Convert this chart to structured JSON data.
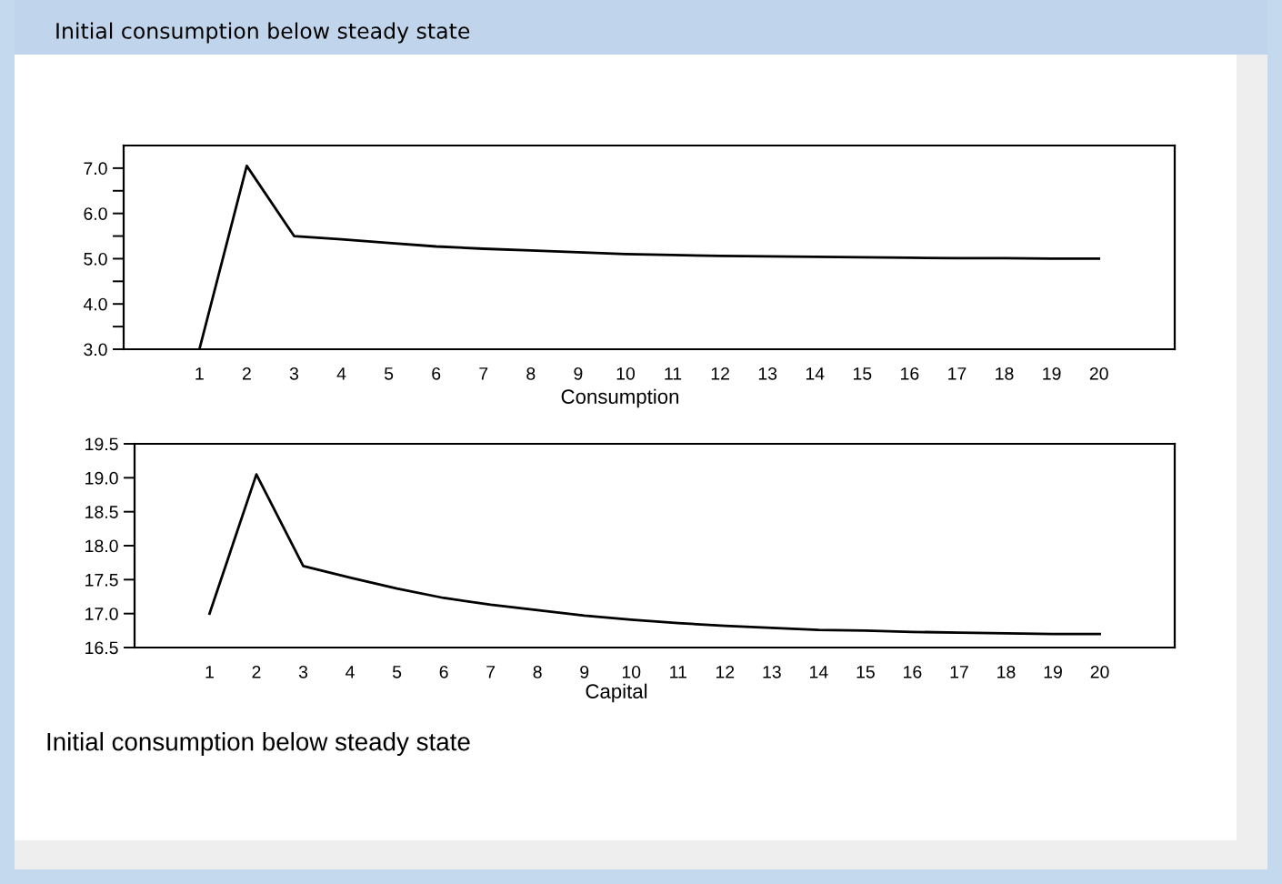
{
  "chart_data": [
    {
      "type": "line",
      "title": "Initial consumption below steady state",
      "xlabel": "Consumption",
      "x": [
        1,
        2,
        3,
        4,
        5,
        6,
        7,
        8,
        9,
        10,
        11,
        12,
        13,
        14,
        15,
        16,
        17,
        18,
        19,
        20
      ],
      "series": [
        {
          "color": "#000000",
          "values": [
            3.0,
            7.05,
            5.5,
            5.43,
            5.35,
            5.27,
            5.22,
            5.18,
            5.14,
            5.1,
            5.08,
            5.06,
            5.05,
            5.04,
            5.03,
            5.02,
            5.01,
            5.01,
            5.0,
            5.0
          ]
        }
      ],
      "xlim": [
        -0.6,
        21.6
      ],
      "xticks": [
        1,
        2,
        3,
        4,
        5,
        6,
        7,
        8,
        9,
        10,
        11,
        12,
        13,
        14,
        15,
        16,
        17,
        18,
        19,
        20
      ],
      "ylim": [
        3.0,
        7.5
      ],
      "yticks": [
        {
          "value": 3.0,
          "label": "3.0"
        },
        {
          "value": 3.5,
          "label": null
        },
        {
          "value": 4.0,
          "label": "4.0"
        },
        {
          "value": 4.5,
          "label": null
        },
        {
          "value": 5.0,
          "label": "5.0"
        },
        {
          "value": 5.5,
          "label": null
        },
        {
          "value": 6.0,
          "label": "6.0"
        },
        {
          "value": 6.5,
          "label": null
        },
        {
          "value": 7.0,
          "label": "7.0"
        }
      ],
      "line_style": "solid"
    },
    {
      "type": "line",
      "xlabel": "Capital",
      "annotations": [
        "Initial consumption below steady state"
      ],
      "x": [
        1,
        2,
        3,
        4,
        5,
        6,
        7,
        8,
        9,
        10,
        11,
        12,
        13,
        14,
        15,
        16,
        17,
        18,
        19,
        20
      ],
      "series": [
        {
          "color": "#000000",
          "values": [
            17.0,
            19.05,
            17.7,
            17.53,
            17.37,
            17.23,
            17.13,
            17.05,
            16.97,
            16.91,
            16.86,
            16.82,
            16.79,
            16.76,
            16.75,
            16.73,
            16.72,
            16.71,
            16.7,
            16.7
          ]
        }
      ],
      "xlim": [
        -0.6,
        21.6
      ],
      "xticks": [
        1,
        2,
        3,
        4,
        5,
        6,
        7,
        8,
        9,
        10,
        11,
        12,
        13,
        14,
        15,
        16,
        17,
        18,
        19,
        20
      ],
      "ylim": [
        16.5,
        19.5
      ],
      "yticks": [
        {
          "value": 16.5,
          "label": "16.5"
        },
        {
          "value": 17.0,
          "label": "17.0"
        },
        {
          "value": 17.5,
          "label": "17.5"
        },
        {
          "value": 18.0,
          "label": "18.0"
        },
        {
          "value": 18.5,
          "label": "18.5"
        },
        {
          "value": 19.0,
          "label": "19.0"
        },
        {
          "value": 19.5,
          "label": "19.5"
        }
      ],
      "line_style": "solid"
    }
  ]
}
